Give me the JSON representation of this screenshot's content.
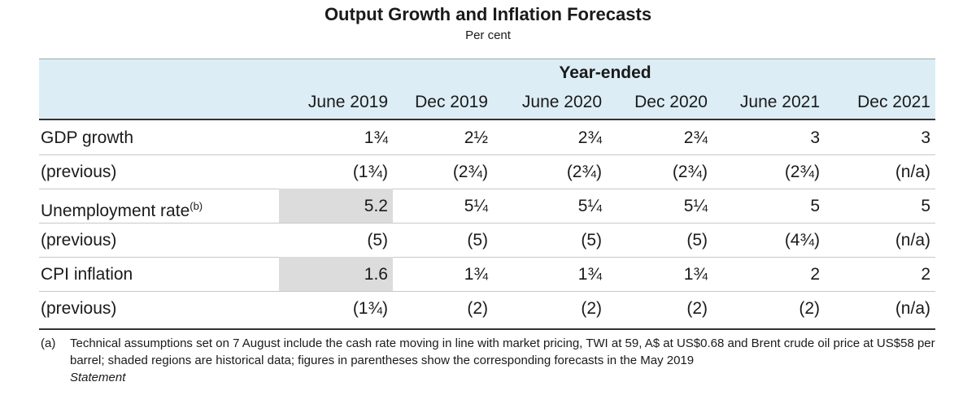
{
  "title": "Output Growth and Inflation Forecasts",
  "subtitle": "Per cent",
  "group_header": "Year-ended",
  "columns": [
    "June 2019",
    "Dec 2019",
    "June 2020",
    "Dec 2020",
    "June 2021",
    "Dec 2021"
  ],
  "rows": [
    {
      "label": "GDP growth",
      "sup": "",
      "values": [
        "1¾",
        "2½",
        "2¾",
        "2¾",
        "3",
        "3"
      ],
      "shaded": false
    },
    {
      "label": "(previous)",
      "sup": "",
      "values": [
        "(1¾)",
        "(2¾)",
        "(2¾)",
        "(2¾)",
        "(2¾)",
        "(n/a)"
      ],
      "shaded": false
    },
    {
      "label": "Unemployment rate",
      "sup": "(b)",
      "values": [
        "5.2",
        "5¼",
        "5¼",
        "5¼",
        "5",
        "5"
      ],
      "shaded": true
    },
    {
      "label": "(previous)",
      "sup": "",
      "values": [
        "(5)",
        "(5)",
        "(5)",
        "(5)",
        "(4¾)",
        "(n/a)"
      ],
      "shaded": false
    },
    {
      "label": "CPI inflation",
      "sup": "",
      "values": [
        "1.6",
        "1¾",
        "1¾",
        "1¾",
        "2",
        "2"
      ],
      "shaded": true
    },
    {
      "label": "(previous)",
      "sup": "",
      "values": [
        "(1¾)",
        "(2)",
        "(2)",
        "(2)",
        "(2)",
        "(n/a)"
      ],
      "shaded": false
    }
  ],
  "footnote": {
    "tag": "(a)",
    "text": "Technical assumptions set on 7 August include the cash rate moving in line with market pricing, TWI at 59, A$ at US$0.68 and Brent crude oil price at US$58 per barrel; shaded regions are historical data; figures in parentheses show the corresponding forecasts in the May 2019",
    "italic": "Statement"
  },
  "colors": {
    "header_band": "#dcedf5",
    "shaded_cell": "#dcdcdc"
  }
}
